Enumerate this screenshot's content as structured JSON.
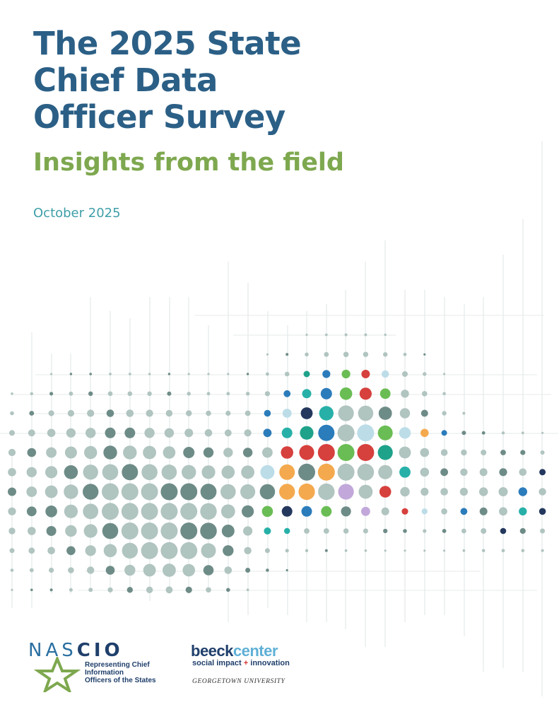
{
  "title": {
    "line1": "The 2025 State",
    "line2": "Chief Data",
    "line3": "Officer Survey"
  },
  "subtitle": "Insights from the field",
  "date": "October 2025",
  "colors": {
    "title": "#2b5f86",
    "subtitle": "#7ea84f",
    "date": "#3f9fa8",
    "dot_palette": [
      "#b0c4c0",
      "#6e8c87",
      "#24385e",
      "#2b7cbb",
      "#27b0a8",
      "#1fa28a",
      "#6abd54",
      "#f4a94e",
      "#d6403d",
      "#bcdde8",
      "#c2a8da"
    ]
  },
  "logos": {
    "nascio": {
      "name": "NASCIO",
      "prefix": "NAS",
      "suffix": "CIO",
      "tagline_line1": "Representing Chief Information",
      "tagline_line2": "Officers of the States"
    },
    "beeck": {
      "name_part1": "beeck",
      "name_part2": "center",
      "tagline_part1": "social impact",
      "tagline_plus": "+",
      "tagline_part2": "innovation",
      "university": "GEORGETOWN UNIVERSITY"
    }
  }
}
